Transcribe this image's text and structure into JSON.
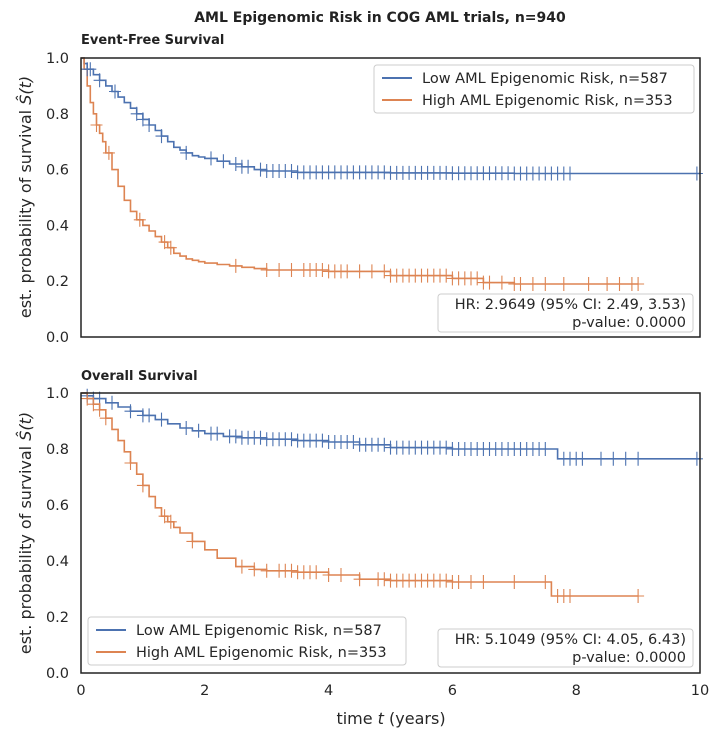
{
  "figure": {
    "suptitle": "AML Epigenomic Risk in COG AML trials, n=940",
    "xlabel": "time t (years)",
    "xlabel_parts": [
      "time ",
      "t",
      " (years)"
    ],
    "ylabel": "est. probability of survival Ŝ(t)",
    "ylabel_parts": [
      "est. probability of survival ",
      "Ŝ(t)"
    ],
    "colors": {
      "low": "#4c72b0",
      "high": "#dd8452"
    }
  },
  "chart_data": [
    {
      "type": "line",
      "title": "Event-Free Survival",
      "xlim": [
        0,
        10
      ],
      "ylim": [
        0,
        1
      ],
      "xticks": [
        "0",
        "2",
        "4",
        "6",
        "8",
        "10"
      ],
      "yticks": [
        "0.0",
        "0.2",
        "0.4",
        "0.6",
        "0.8",
        "1.0"
      ],
      "legend_position": "upper right",
      "legend": [
        "Low AML Epigenomic Risk, n=587",
        "High AML Epigenomic Risk, n=353"
      ],
      "stats": [
        "HR: 2.9649 (95% CI: 2.49, 3.53)",
        "p-value: 0.0000"
      ],
      "series": [
        {
          "name": "Low AML Epigenomic Risk, n=587",
          "color": "#4c72b0",
          "x": [
            0,
            0.05,
            0.1,
            0.2,
            0.3,
            0.4,
            0.5,
            0.6,
            0.7,
            0.8,
            0.9,
            1.0,
            1.1,
            1.2,
            1.3,
            1.4,
            1.5,
            1.6,
            1.7,
            1.8,
            1.9,
            2.0,
            2.2,
            2.4,
            2.6,
            2.8,
            3.0,
            3.5,
            4.0,
            5.0,
            6.0,
            7.0,
            8.0,
            10.0
          ],
          "y": [
            1.0,
            0.98,
            0.96,
            0.94,
            0.92,
            0.9,
            0.88,
            0.86,
            0.84,
            0.82,
            0.8,
            0.78,
            0.76,
            0.74,
            0.72,
            0.7,
            0.68,
            0.67,
            0.66,
            0.65,
            0.645,
            0.64,
            0.63,
            0.62,
            0.61,
            0.6,
            0.595,
            0.59,
            0.59,
            0.588,
            0.587,
            0.586,
            0.586,
            0.586
          ],
          "censor_x": [
            0.1,
            0.15,
            0.3,
            0.55,
            0.9,
            1.0,
            1.1,
            1.3,
            1.7,
            2.1,
            2.3,
            2.5,
            2.6,
            2.7,
            2.9,
            3.0,
            3.1,
            3.2,
            3.3,
            3.4,
            3.5,
            3.6,
            3.7,
            3.8,
            3.9,
            4.0,
            4.1,
            4.2,
            4.3,
            4.4,
            4.5,
            4.6,
            4.7,
            4.8,
            4.9,
            5.0,
            5.1,
            5.2,
            5.3,
            5.4,
            5.5,
            5.6,
            5.7,
            5.8,
            5.9,
            6.0,
            6.1,
            6.2,
            6.3,
            6.4,
            6.5,
            6.6,
            6.7,
            6.8,
            6.9,
            7.0,
            7.1,
            7.2,
            7.3,
            7.4,
            7.5,
            7.6,
            7.7,
            7.8,
            7.9,
            9.95
          ]
        },
        {
          "name": "High AML Epigenomic Risk, n=353",
          "color": "#dd8452",
          "x": [
            0,
            0.05,
            0.1,
            0.15,
            0.2,
            0.25,
            0.3,
            0.35,
            0.4,
            0.5,
            0.6,
            0.7,
            0.8,
            0.9,
            1.0,
            1.1,
            1.2,
            1.3,
            1.4,
            1.5,
            1.6,
            1.7,
            1.8,
            1.9,
            2.0,
            2.2,
            2.4,
            2.6,
            2.8,
            3.0,
            4.0,
            5.0,
            6.0,
            6.5,
            7.0,
            9.0
          ],
          "y": [
            1.0,
            0.96,
            0.9,
            0.84,
            0.8,
            0.76,
            0.73,
            0.7,
            0.66,
            0.6,
            0.54,
            0.49,
            0.45,
            0.42,
            0.4,
            0.38,
            0.36,
            0.34,
            0.32,
            0.3,
            0.29,
            0.28,
            0.275,
            0.27,
            0.265,
            0.26,
            0.255,
            0.25,
            0.245,
            0.24,
            0.235,
            0.22,
            0.21,
            0.195,
            0.19,
            0.19
          ],
          "censor_x": [
            0.25,
            0.45,
            0.95,
            1.35,
            1.45,
            2.5,
            3.0,
            3.2,
            3.4,
            3.6,
            3.7,
            3.8,
            3.9,
            4.0,
            4.1,
            4.2,
            4.3,
            4.5,
            4.7,
            4.9,
            5.0,
            5.1,
            5.2,
            5.3,
            5.4,
            5.5,
            5.6,
            5.7,
            5.8,
            5.9,
            6.0,
            6.1,
            6.2,
            6.3,
            6.4,
            6.5,
            6.6,
            6.8,
            7.0,
            7.1,
            7.3,
            7.5,
            7.8,
            8.2,
            8.5,
            8.7,
            8.9,
            9.0
          ]
        }
      ]
    },
    {
      "type": "line",
      "title": "Overall Survival",
      "xlim": [
        0,
        10
      ],
      "ylim": [
        0,
        1
      ],
      "xticks": [
        "0",
        "2",
        "4",
        "6",
        "8",
        "10"
      ],
      "yticks": [
        "0.0",
        "0.2",
        "0.4",
        "0.6",
        "0.8",
        "1.0"
      ],
      "legend_position": "lower left",
      "legend": [
        "Low AML Epigenomic Risk, n=587",
        "High AML Epigenomic Risk, n=353"
      ],
      "stats": [
        "HR: 5.1049 (95% CI: 4.05, 6.43)",
        "p-value: 0.0000"
      ],
      "series": [
        {
          "name": "Low AML Epigenomic Risk, n=587",
          "color": "#4c72b0",
          "x": [
            0,
            0.1,
            0.2,
            0.4,
            0.6,
            0.8,
            1.0,
            1.2,
            1.4,
            1.6,
            1.8,
            2.0,
            2.3,
            2.6,
            3.0,
            3.5,
            4.0,
            4.5,
            5.0,
            6.0,
            7.0,
            7.6,
            7.7,
            10.0
          ],
          "y": [
            1.0,
            0.99,
            0.98,
            0.965,
            0.95,
            0.935,
            0.92,
            0.905,
            0.89,
            0.875,
            0.865,
            0.855,
            0.845,
            0.84,
            0.835,
            0.83,
            0.825,
            0.815,
            0.805,
            0.8,
            0.8,
            0.8,
            0.765,
            0.765
          ],
          "censor_x": [
            0.1,
            0.2,
            0.3,
            0.5,
            0.8,
            1.0,
            1.1,
            1.3,
            1.7,
            1.9,
            2.1,
            2.2,
            2.4,
            2.5,
            2.6,
            2.7,
            2.8,
            2.9,
            3.0,
            3.1,
            3.2,
            3.3,
            3.4,
            3.5,
            3.6,
            3.7,
            3.8,
            3.9,
            4.0,
            4.1,
            4.2,
            4.3,
            4.4,
            4.5,
            4.6,
            4.7,
            4.8,
            4.9,
            5.0,
            5.1,
            5.2,
            5.3,
            5.4,
            5.5,
            5.6,
            5.7,
            5.8,
            5.9,
            6.0,
            6.1,
            6.2,
            6.3,
            6.4,
            6.5,
            6.6,
            6.7,
            6.8,
            6.9,
            7.0,
            7.1,
            7.2,
            7.3,
            7.4,
            7.5,
            7.8,
            7.9,
            8.0,
            8.1,
            8.4,
            8.6,
            8.8,
            9.0,
            9.95
          ]
        },
        {
          "name": "High AML Epigenomic Risk, n=353",
          "color": "#dd8452",
          "x": [
            0,
            0.1,
            0.2,
            0.3,
            0.4,
            0.5,
            0.6,
            0.7,
            0.8,
            0.9,
            1.0,
            1.1,
            1.2,
            1.3,
            1.4,
            1.5,
            1.6,
            1.8,
            2.0,
            2.2,
            2.5,
            2.8,
            3.0,
            3.5,
            4.0,
            4.5,
            5.0,
            6.0,
            7.0,
            7.5,
            7.6,
            9.0
          ],
          "y": [
            1.0,
            0.98,
            0.96,
            0.94,
            0.91,
            0.87,
            0.83,
            0.79,
            0.75,
            0.71,
            0.67,
            0.63,
            0.59,
            0.56,
            0.54,
            0.52,
            0.5,
            0.47,
            0.44,
            0.41,
            0.38,
            0.37,
            0.365,
            0.36,
            0.35,
            0.335,
            0.33,
            0.325,
            0.325,
            0.325,
            0.275,
            0.275
          ],
          "censor_x": [
            0.1,
            0.2,
            0.3,
            0.4,
            0.8,
            1.0,
            1.35,
            1.45,
            1.8,
            2.6,
            2.8,
            3.0,
            3.2,
            3.3,
            3.4,
            3.5,
            3.6,
            3.7,
            3.8,
            4.0,
            4.2,
            4.5,
            4.8,
            4.9,
            5.0,
            5.1,
            5.2,
            5.3,
            5.4,
            5.5,
            5.6,
            5.7,
            5.8,
            5.9,
            6.0,
            6.1,
            6.3,
            6.5,
            7.0,
            7.5,
            7.7,
            7.8,
            7.9,
            9.0
          ]
        }
      ]
    }
  ]
}
